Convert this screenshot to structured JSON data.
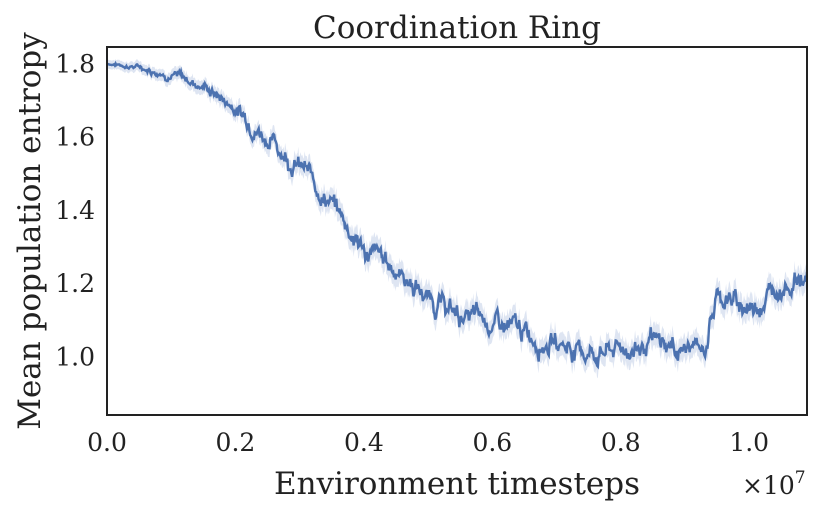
{
  "chart_data": {
    "type": "line",
    "title": "Coordination Ring",
    "xlabel": "Environment timesteps",
    "ylabel": "Mean population entropy",
    "x_offset_label": "×10",
    "x_offset_exponent": "7",
    "xlim": [
      0.0,
      1.09
    ],
    "ylim": [
      0.84,
      1.845
    ],
    "x_ticks": [
      0.0,
      0.2,
      0.4,
      0.6,
      0.8,
      1.0
    ],
    "x_tick_labels": [
      "0.0",
      "0.2",
      "0.4",
      "0.6",
      "0.8",
      "1.0"
    ],
    "y_ticks": [
      1.0,
      1.2,
      1.4,
      1.6,
      1.8
    ],
    "y_tick_labels": [
      "1.0",
      "1.2",
      "1.4",
      "1.6",
      "1.8"
    ],
    "grid": false,
    "line_color": "#4c72b0",
    "band_color": "#c8d4ea",
    "series": [
      {
        "x": [
          0.0,
          0.05,
          0.1,
          0.15,
          0.2,
          0.25,
          0.3,
          0.35,
          0.4,
          0.45,
          0.5,
          0.55,
          0.6,
          0.65,
          0.7,
          0.75,
          0.8,
          0.85,
          0.9,
          0.93,
          0.95,
          1.0,
          1.05,
          1.09
        ],
        "y": [
          1.8,
          1.79,
          1.77,
          1.74,
          1.68,
          1.6,
          1.52,
          1.42,
          1.29,
          1.24,
          1.16,
          1.11,
          1.09,
          1.06,
          1.04,
          1.01,
          1.02,
          1.03,
          1.02,
          1.02,
          1.17,
          1.13,
          1.2,
          1.22
        ]
      }
    ]
  }
}
